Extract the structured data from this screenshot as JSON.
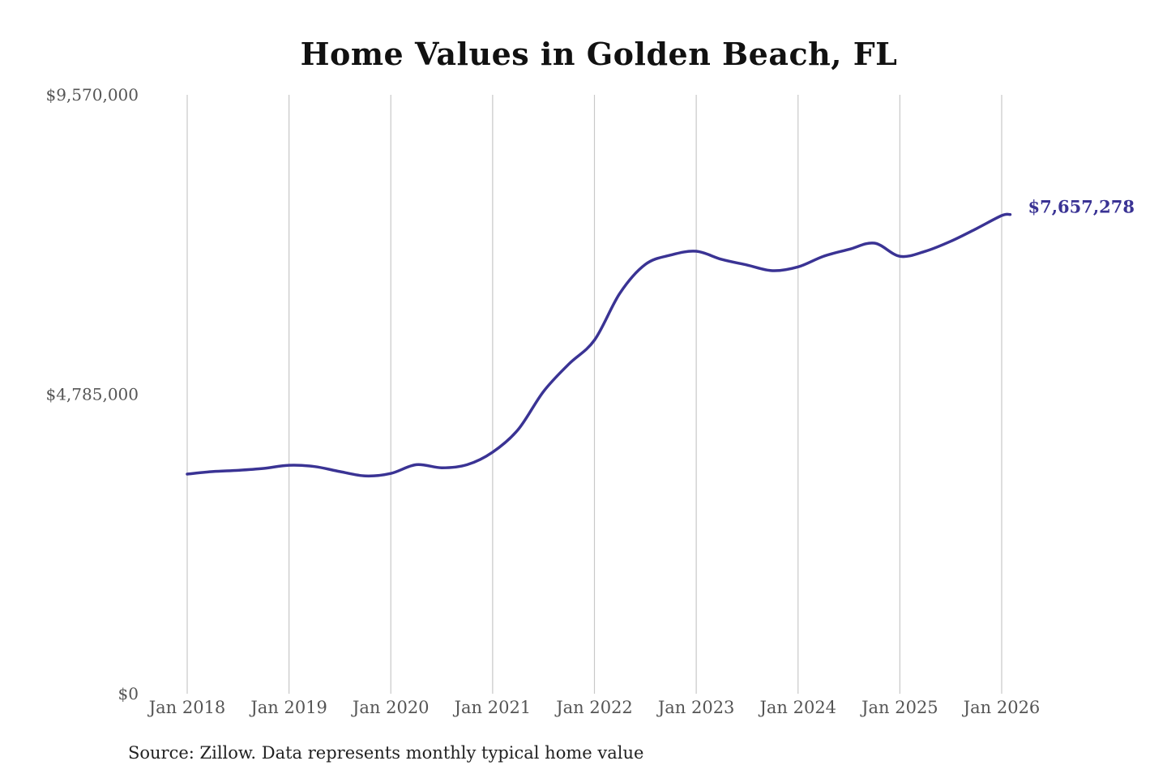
{
  "chart_data": {
    "type": "line",
    "title": "Home Values in Golden Beach, FL",
    "source": "Source: Zillow. Data represents monthly typical home value",
    "xlabel": "",
    "ylabel": "",
    "ylim": [
      0,
      9570000
    ],
    "yticks": [
      0,
      4785000,
      9570000
    ],
    "ytick_labels": [
      "$0",
      "$4,785,000",
      "$9,570,000"
    ],
    "xticks": [
      "2018-01",
      "2019-01",
      "2020-01",
      "2021-01",
      "2022-01",
      "2023-01",
      "2024-01",
      "2025-01",
      "2026-01"
    ],
    "xtick_labels": [
      "Jan 2018",
      "Jan 2019",
      "Jan 2020",
      "Jan 2021",
      "Jan 2022",
      "Jan 2023",
      "Jan 2024",
      "Jan 2025",
      "Jan 2026"
    ],
    "xlim": [
      "2018-01",
      "2026-02"
    ],
    "grid": "vertical",
    "line_color": "#3a3394",
    "end_label": "$7,657,278",
    "series": [
      {
        "x": [
          "2018-01",
          "2018-04",
          "2018-07",
          "2018-10",
          "2019-01",
          "2019-04",
          "2019-07",
          "2019-10",
          "2020-01",
          "2020-04",
          "2020-07",
          "2020-10",
          "2021-01",
          "2021-04",
          "2021-07",
          "2021-10",
          "2022-01",
          "2022-04",
          "2022-07",
          "2022-10",
          "2023-01",
          "2023-04",
          "2023-07",
          "2023-10",
          "2024-01",
          "2024-04",
          "2024-07",
          "2024-10",
          "2025-01",
          "2025-04",
          "2025-07",
          "2025-10",
          "2026-01",
          "2026-02"
        ],
        "y": [
          3510000,
          3550000,
          3570000,
          3600000,
          3650000,
          3630000,
          3550000,
          3480000,
          3520000,
          3660000,
          3610000,
          3660000,
          3860000,
          4220000,
          4830000,
          5270000,
          5650000,
          6400000,
          6860000,
          7010000,
          7070000,
          6940000,
          6850000,
          6760000,
          6820000,
          6990000,
          7100000,
          7200000,
          6990000,
          7070000,
          7230000,
          7430000,
          7640000,
          7657278
        ]
      }
    ]
  }
}
